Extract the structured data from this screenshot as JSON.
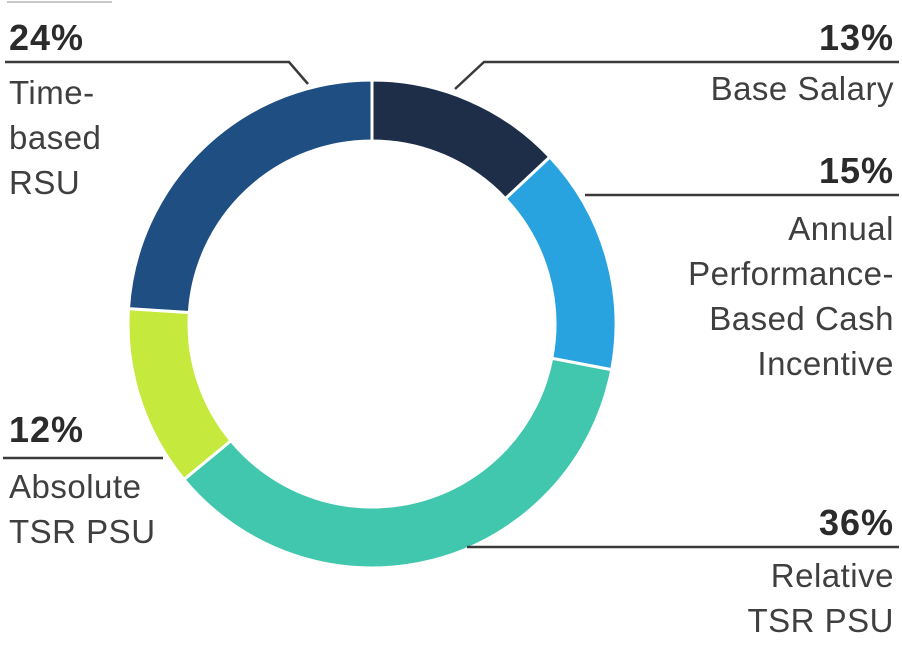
{
  "chart_data": {
    "type": "pie",
    "subtype": "donut",
    "title": "",
    "direction": "clockwise",
    "start_angle_deg": 0,
    "inner_radius_ratio": 0.75,
    "legend_position": "callouts",
    "segments": [
      {
        "label": "Base Salary",
        "value": 13,
        "display": "13%",
        "color": "#1E2E48"
      },
      {
        "label": "Annual Performance-Based Cash Incentive",
        "value": 15,
        "display": "15%",
        "color": "#29A3DF"
      },
      {
        "label": "Relative TSR PSU",
        "value": 36,
        "display": "36%",
        "color": "#40C7AD"
      },
      {
        "label": "Absolute TSR PSU",
        "value": 12,
        "display": "12%",
        "color": "#C5E93D"
      },
      {
        "label": "Time-based RSU",
        "value": 24,
        "display": "24%",
        "color": "#1F4E82"
      }
    ]
  },
  "callouts": {
    "time_based_rsu": {
      "pct": "24%",
      "label": "Time-\nbased\nRSU"
    },
    "base_salary": {
      "pct": "13%",
      "label": "Base Salary"
    },
    "annual_cash_incentive": {
      "pct": "15%",
      "label": "Annual\nPerformance-\nBased Cash\nIncentive"
    },
    "absolute_tsr_psu": {
      "pct": "12%",
      "label": "Absolute\nTSR PSU"
    },
    "relative_tsr_psu": {
      "pct": "36%",
      "label": "Relative\nTSR PSU"
    }
  },
  "colors": {
    "background": "#ffffff",
    "pct_text": "#2b2b2b",
    "label_text": "#3f3f3f",
    "leader_line": "#3a3a3a",
    "segment_gap": "#ffffff"
  }
}
